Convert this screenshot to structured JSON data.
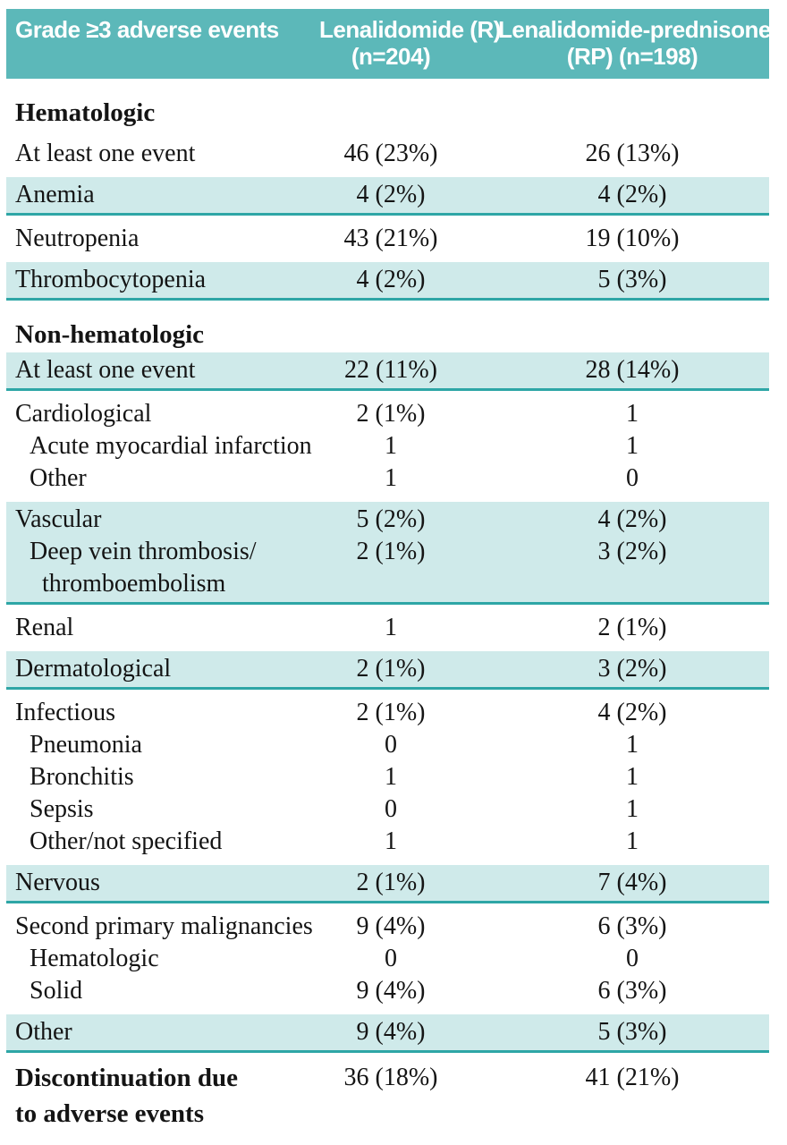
{
  "colors": {
    "header_bg": "#5cb8b9",
    "header_text": "#ffffff",
    "band_bg": "#cfeaea",
    "band_rule": "#2ea6a6",
    "text": "#141414"
  },
  "table": {
    "header": {
      "col1": "Grade ≥3 adverse events",
      "col2": [
        "Lenalidomide (R)",
        "(n=204)"
      ],
      "col3": [
        "Lenalidomide-prednisone",
        "(RP) (n=198)"
      ]
    },
    "blocks": [
      {
        "kind": "heading",
        "label": "Hematologic"
      },
      {
        "kind": "rows",
        "shaded": false,
        "lines": [
          {
            "label": "At least one event",
            "indent": 0,
            "v1": "46 (23%)",
            "v2": "26 (13%)"
          }
        ]
      },
      {
        "kind": "rows",
        "shaded": true,
        "lines": [
          {
            "label": "Anemia",
            "indent": 0,
            "v1": "4 (2%)",
            "v2": "4 (2%)"
          }
        ]
      },
      {
        "kind": "rows",
        "shaded": false,
        "lines": [
          {
            "label": "Neutropenia",
            "indent": 0,
            "v1": "43 (21%)",
            "v2": "19 (10%)"
          }
        ]
      },
      {
        "kind": "rows",
        "shaded": true,
        "lines": [
          {
            "label": "Thrombocytopenia",
            "indent": 0,
            "v1": "4 (2%)",
            "v2": "5 (3%)"
          }
        ]
      },
      {
        "kind": "heading",
        "label": "Non-hematologic"
      },
      {
        "kind": "rows",
        "shaded": true,
        "lines": [
          {
            "label": "At least one event",
            "indent": 0,
            "v1": "22 (11%)",
            "v2": "28 (14%)"
          }
        ]
      },
      {
        "kind": "rows",
        "shaded": false,
        "lines": [
          {
            "label": "Cardiological",
            "indent": 0,
            "v1": "2 (1%)",
            "v2": "1"
          },
          {
            "label": "Acute myocardial infarction",
            "indent": 1,
            "v1": "1",
            "v2": "1"
          },
          {
            "label": "Other",
            "indent": 1,
            "v1": "1",
            "v2": "0"
          }
        ]
      },
      {
        "kind": "rows",
        "shaded": true,
        "lines": [
          {
            "label": "Vascular",
            "indent": 0,
            "v1": "5 (2%)",
            "v2": "4 (2%)"
          },
          {
            "label": "Deep vein thrombosis/",
            "indent": 1,
            "v1": "2 (1%)",
            "v2": "3 (2%)"
          },
          {
            "label": "thromboembolism",
            "indent": 2,
            "v1": "",
            "v2": ""
          }
        ]
      },
      {
        "kind": "rows",
        "shaded": false,
        "lines": [
          {
            "label": "Renal",
            "indent": 0,
            "v1": "1",
            "v2": "2 (1%)"
          }
        ]
      },
      {
        "kind": "rows",
        "shaded": true,
        "lines": [
          {
            "label": "Dermatological",
            "indent": 0,
            "v1": "2 (1%)",
            "v2": "3 (2%)"
          }
        ]
      },
      {
        "kind": "rows",
        "shaded": false,
        "lines": [
          {
            "label": "Infectious",
            "indent": 0,
            "v1": "2 (1%)",
            "v2": "4 (2%)"
          },
          {
            "label": "Pneumonia",
            "indent": 1,
            "v1": "0",
            "v2": "1"
          },
          {
            "label": "Bronchitis",
            "indent": 1,
            "v1": "1",
            "v2": "1"
          },
          {
            "label": "Sepsis",
            "indent": 1,
            "v1": "0",
            "v2": "1"
          },
          {
            "label": "Other/not specified",
            "indent": 1,
            "v1": "1",
            "v2": "1"
          }
        ]
      },
      {
        "kind": "rows",
        "shaded": true,
        "lines": [
          {
            "label": "Nervous",
            "indent": 0,
            "v1": "2 (1%)",
            "v2": "7 (4%)"
          }
        ]
      },
      {
        "kind": "rows",
        "shaded": false,
        "lines": [
          {
            "label": "Second primary malignancies",
            "indent": 0,
            "v1": "9 (4%)",
            "v2": "6 (3%)"
          },
          {
            "label": "Hematologic",
            "indent": 1,
            "v1": "0",
            "v2": "0"
          },
          {
            "label": "Solid",
            "indent": 1,
            "v1": "9 (4%)",
            "v2": "6 (3%)"
          }
        ]
      },
      {
        "kind": "rows",
        "shaded": true,
        "lines": [
          {
            "label": "Other",
            "indent": 0,
            "v1": "9 (4%)",
            "v2": "5 (3%)"
          }
        ]
      },
      {
        "kind": "rows",
        "shaded": false,
        "bold": true,
        "lines": [
          {
            "label": "Discontinuation due",
            "indent": 0,
            "v1": "36 (18%)",
            "v2": "41 (21%)"
          },
          {
            "label": "to adverse events",
            "indent": 0,
            "v1": "",
            "v2": ""
          }
        ]
      }
    ]
  }
}
